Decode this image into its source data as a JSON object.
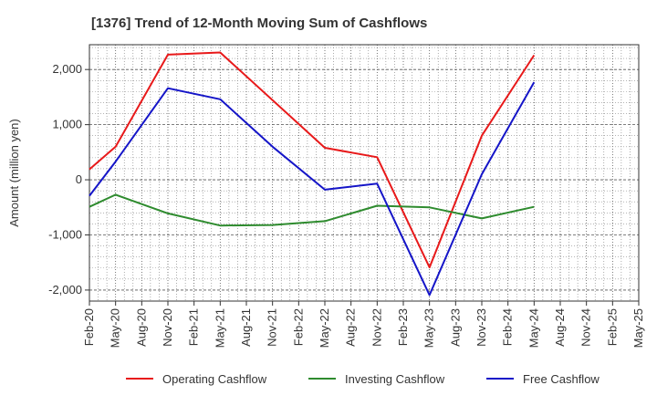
{
  "chart_data": {
    "type": "line",
    "title": "[1376]  Trend of 12-Month Moving Sum of Cashflows",
    "xlabel": "",
    "ylabel": "Amount (million yen)",
    "categories": [
      "Feb-20",
      "May-20",
      "Aug-20",
      "Nov-20",
      "Feb-21",
      "May-21",
      "Aug-21",
      "Nov-21",
      "Feb-22",
      "May-22",
      "Aug-22",
      "Nov-22",
      "Feb-23",
      "May-23",
      "Aug-23",
      "Nov-23",
      "Feb-24",
      "May-24",
      "Aug-24",
      "Nov-24",
      "Feb-25",
      "May-25"
    ],
    "ylim": [
      -2200,
      2450
    ],
    "yticks": [
      2000,
      1000,
      0,
      -1000,
      -2000
    ],
    "ytick_labels": [
      "2,000",
      "1,000",
      "0",
      "-1,000",
      "-2,000"
    ],
    "grid": true,
    "legend_position": "bottom",
    "series": [
      {
        "name": "Operating Cashflow",
        "color": "#e8191a",
        "values": [
          190,
          600,
          null,
          2270,
          null,
          2310,
          null,
          null,
          null,
          580,
          null,
          410,
          null,
          -1590,
          null,
          800,
          null,
          2260,
          null,
          null,
          null,
          null
        ]
      },
      {
        "name": "Investing Cashflow",
        "color": "#2e8b2e",
        "values": [
          -490,
          -270,
          null,
          -610,
          null,
          -830,
          null,
          -820,
          null,
          -750,
          null,
          -470,
          null,
          -500,
          null,
          -700,
          null,
          -490,
          null,
          null,
          null,
          null
        ]
      },
      {
        "name": "Free Cashflow",
        "color": "#1515c8",
        "values": [
          -290,
          330,
          null,
          1660,
          null,
          1460,
          null,
          600,
          null,
          -180,
          null,
          -70,
          null,
          -2090,
          null,
          100,
          null,
          1770,
          null,
          null,
          null,
          null
        ]
      }
    ]
  }
}
